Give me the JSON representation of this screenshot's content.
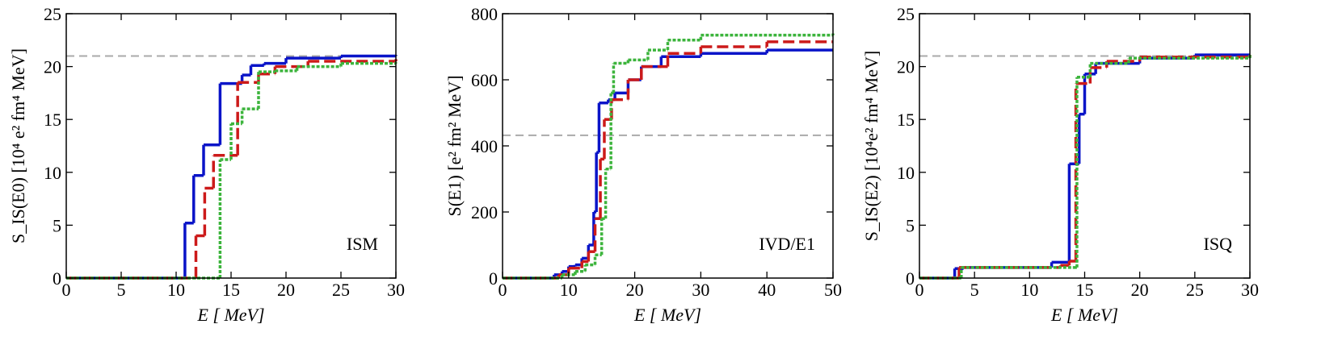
{
  "chart_data": [
    {
      "type": "step",
      "y_label": "S_IS(E0) [10⁴ e² fm⁴ MeV]",
      "x_label": "E [ MeV]",
      "annotation": "ISM",
      "xlim": [
        0,
        30
      ],
      "xticks": [
        0,
        5,
        10,
        15,
        20,
        25,
        30
      ],
      "ylim": [
        0,
        25
      ],
      "yticks": [
        0,
        5,
        10,
        15,
        20,
        25
      ],
      "reference_line": 21,
      "series": [
        {
          "color": "#0a14c8",
          "style": "solid",
          "x": [
            0,
            10.8,
            11.6,
            12.5,
            14,
            16,
            16.8,
            18,
            20,
            25,
            30
          ],
          "values": [
            0,
            5.2,
            9.7,
            12.6,
            18.4,
            19.2,
            20.1,
            20.3,
            20.8,
            21.0,
            21.1
          ]
        },
        {
          "color": "#cc1a1a",
          "style": "dashed",
          "x": [
            0,
            11.8,
            12.6,
            13.4,
            15.6,
            17.5,
            19,
            22,
            30
          ],
          "values": [
            0,
            4,
            8.5,
            11.6,
            18.5,
            19.3,
            20,
            20.5,
            20.7
          ]
        },
        {
          "color": "#3cb43c",
          "style": "dotted",
          "x": [
            0,
            14,
            15,
            16,
            17.5,
            19,
            21,
            25,
            30
          ],
          "values": [
            0,
            11.2,
            14.6,
            16,
            19.5,
            19.6,
            20,
            20.3,
            20.4
          ]
        }
      ]
    },
    {
      "type": "step",
      "y_label": "S(E1) [e² fm² MeV]",
      "x_label": "E [ MeV]",
      "annotation": "IVD/E1",
      "xlim": [
        0,
        50
      ],
      "xticks": [
        0,
        10,
        20,
        30,
        40,
        50
      ],
      "ylim": [
        0,
        800
      ],
      "yticks": [
        0,
        200,
        400,
        600,
        800
      ],
      "reference_line": 432,
      "series": [
        {
          "color": "#0a14c8",
          "style": "solid",
          "x": [
            0,
            7.8,
            9,
            10,
            11,
            12,
            13,
            13.8,
            14.2,
            14.6,
            16,
            17,
            19,
            21,
            24,
            30,
            40,
            50
          ],
          "values": [
            0,
            10,
            20,
            35,
            40,
            60,
            100,
            200,
            380,
            530,
            540,
            560,
            600,
            640,
            670,
            680,
            690,
            690
          ]
        },
        {
          "color": "#cc1a1a",
          "style": "dashed",
          "x": [
            0,
            8.5,
            10,
            12,
            13,
            14,
            14.8,
            15.4,
            16.5,
            19,
            21,
            25,
            30,
            40,
            50
          ],
          "values": [
            0,
            10,
            30,
            50,
            80,
            180,
            360,
            480,
            540,
            600,
            640,
            680,
            700,
            715,
            715
          ]
        },
        {
          "color": "#3cb43c",
          "style": "dotted",
          "x": [
            0,
            9,
            11,
            12.5,
            14,
            15,
            15.6,
            16.4,
            16.8,
            19,
            22,
            25,
            30,
            50
          ],
          "values": [
            0,
            10,
            20,
            40,
            70,
            180,
            330,
            560,
            650,
            660,
            690,
            720,
            735,
            740
          ]
        }
      ]
    },
    {
      "type": "step",
      "y_label": "S_IS(E2) [10⁴e² fm⁴ MeV]",
      "x_label": "E [ MeV]",
      "annotation": "ISQ",
      "xlim": [
        0,
        30
      ],
      "xticks": [
        0,
        5,
        10,
        15,
        20,
        25,
        30
      ],
      "ylim": [
        0,
        25
      ],
      "yticks": [
        0,
        5,
        10,
        15,
        20,
        25
      ],
      "reference_line": 21,
      "series": [
        {
          "color": "#0a14c8",
          "style": "solid",
          "x": [
            0,
            3.2,
            4,
            12,
            13.6,
            14.5,
            15,
            16,
            20,
            25,
            30
          ],
          "values": [
            0,
            0.9,
            1.0,
            1.5,
            10.8,
            15.5,
            19.3,
            20.3,
            20.8,
            21.1,
            21.1
          ]
        },
        {
          "color": "#cc1a1a",
          "style": "dashed",
          "x": [
            0,
            3.6,
            12.8,
            13.6,
            14.2,
            15.5,
            17,
            20,
            30
          ],
          "values": [
            0,
            1.0,
            1.2,
            1.6,
            18.4,
            19.9,
            20.5,
            20.9,
            21.1
          ]
        },
        {
          "color": "#3cb43c",
          "style": "dotted",
          "x": [
            0,
            3.8,
            14,
            14.3,
            15.5,
            19,
            30
          ],
          "values": [
            0,
            1.0,
            1.0,
            19,
            20.3,
            20.8,
            21.1
          ]
        }
      ]
    }
  ]
}
